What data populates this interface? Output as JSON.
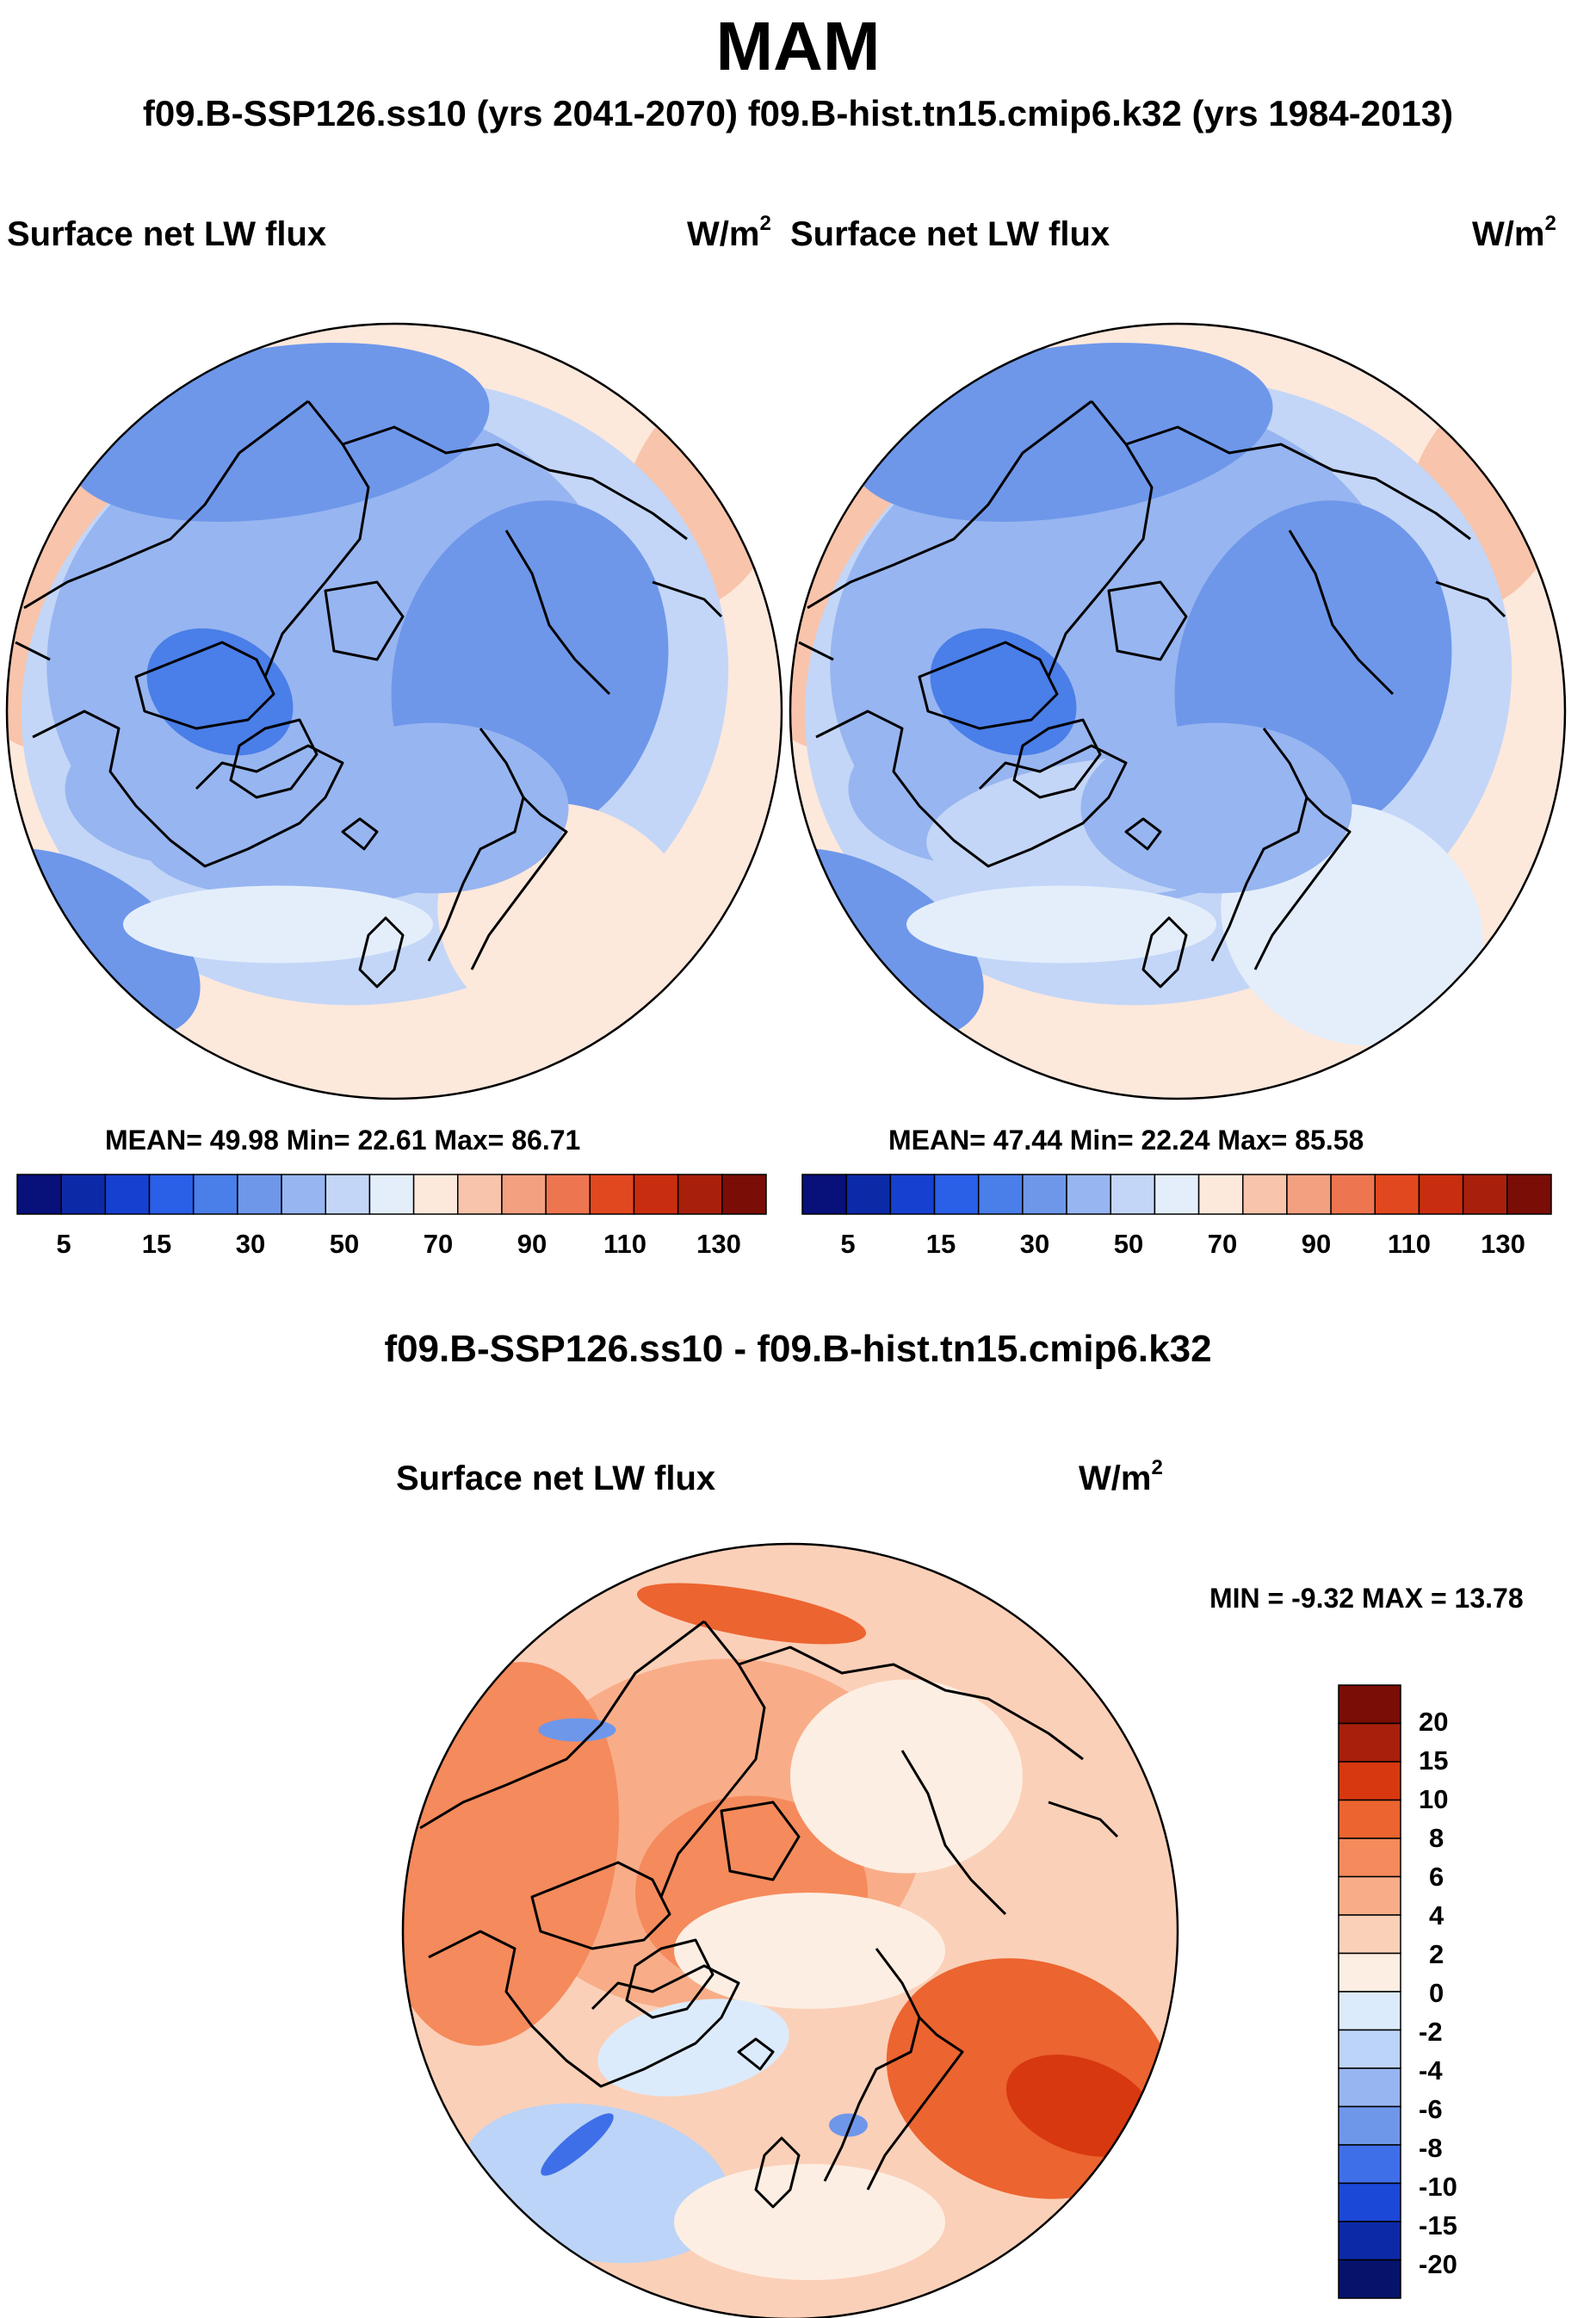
{
  "season": "MAM",
  "subtitle": "f09.B-SSP126.ss10 (yrs 2041-2070)  f09.B-hist.tn15.cmip6.k32 (yrs 1984-2013)",
  "panels": [
    {
      "name": "f09.B-SSP126.ss10 (yrs 2041-2070)",
      "variable": "Surface net LW flux",
      "units": "W/m",
      "units_exp": "2",
      "stats_text": "MEAN=  49.98  Min=  22.61  Max=  86.71",
      "mean": 49.98,
      "min": 22.61,
      "max": 86.71
    },
    {
      "name": "f09.B-hist.tn15.cmip6.k32 (yrs 1984-2013)",
      "variable": "Surface net LW flux",
      "units": "W/m",
      "units_exp": "2",
      "stats_text": "MEAN=  47.44  Min=  22.24  Max=  85.58",
      "mean": 47.44,
      "min": 22.24,
      "max": 85.58
    }
  ],
  "abs_colorbar": {
    "tick_labels": [
      "5",
      "15",
      "30",
      "50",
      "70",
      "90",
      "110",
      "130"
    ],
    "colors": [
      "#08107a",
      "#0c2aa8",
      "#1640cf",
      "#2a5fe8",
      "#4a7ee8",
      "#6e97ea",
      "#97b5f0",
      "#c3d6f7",
      "#e4eefb",
      "#fde8dc",
      "#f8c4ab",
      "#f2a07f",
      "#ed7550",
      "#e2481f",
      "#c92d0f",
      "#a8200c",
      "#7a0d05"
    ]
  },
  "difference": {
    "title": "f09.B-SSP126.ss10 - f09.B-hist.tn15.cmip6.k32",
    "variable": "Surface net LW flux",
    "units": "W/m",
    "units_exp": "2",
    "minmax_text": "MIN =  -9.32 MAX =  13.78",
    "min": -9.32,
    "max": 13.78
  },
  "diff_colorbar": {
    "tick_labels": [
      "20",
      "15",
      "10",
      "8",
      "6",
      "4",
      "2",
      "0",
      "-2",
      "-4",
      "-6",
      "-8",
      "-10",
      "-15",
      "-20"
    ],
    "colors": [
      "#7a0d05",
      "#a8200c",
      "#d8380f",
      "#ec6430",
      "#f58a5c",
      "#f8ad88",
      "#fbd0b8",
      "#fdeee3",
      "#dcebfb",
      "#bcd4f7",
      "#97b5f0",
      "#6e97ea",
      "#3f6fe8",
      "#1c48d8",
      "#0c2aa8",
      "#06136b"
    ]
  },
  "chart_data": [
    {
      "type": "heatmap",
      "title": "Surface net LW flux",
      "panel": "f09.B-SSP126.ss10 (yrs 2041-2070)",
      "units": "W/m2",
      "projection": "north polar stereographic",
      "mean": 49.98,
      "min": 22.61,
      "max": 86.71,
      "colorbar_ticks": [
        5,
        15,
        30,
        50,
        70,
        90,
        110,
        130
      ]
    },
    {
      "type": "heatmap",
      "title": "Surface net LW flux",
      "panel": "f09.B-hist.tn15.cmip6.k32 (yrs 1984-2013)",
      "units": "W/m2",
      "projection": "north polar stereographic",
      "mean": 47.44,
      "min": 22.24,
      "max": 85.58,
      "colorbar_ticks": [
        5,
        15,
        30,
        50,
        70,
        90,
        110,
        130
      ]
    },
    {
      "type": "heatmap",
      "title": "Surface net LW flux",
      "panel": "f09.B-SSP126.ss10 - f09.B-hist.tn15.cmip6.k32",
      "units": "W/m2",
      "projection": "north polar stereographic",
      "min": -9.32,
      "max": 13.78,
      "colorbar_ticks": [
        20,
        15,
        10,
        8,
        6,
        4,
        2,
        0,
        -2,
        -4,
        -6,
        -8,
        -10,
        -15,
        -20
      ]
    }
  ]
}
